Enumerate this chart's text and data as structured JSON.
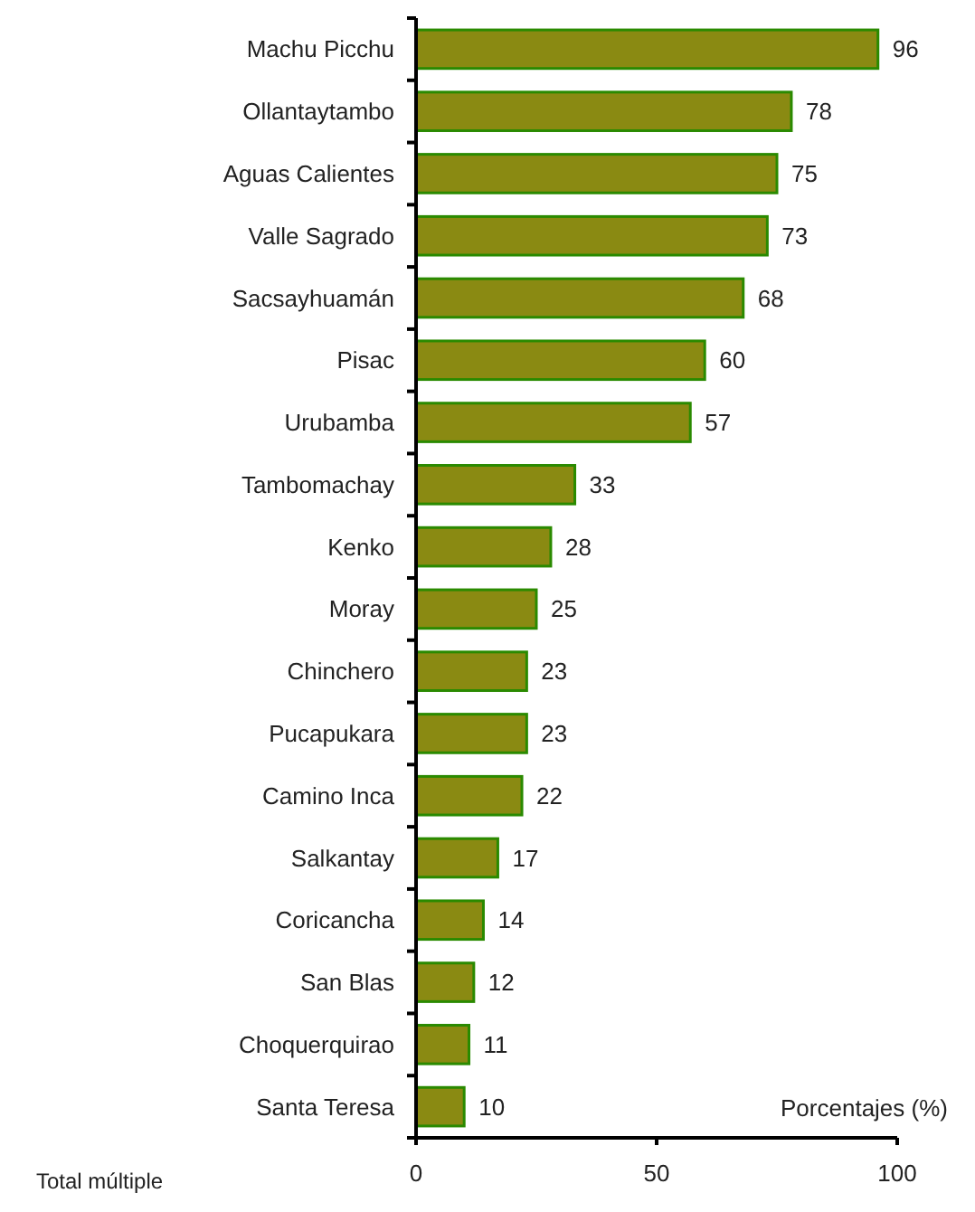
{
  "chart_data": {
    "type": "bar",
    "orientation": "horizontal",
    "xlabel": "Porcentajes (%)",
    "annotations": [
      "Total múltiple"
    ],
    "categories": [
      "Machu Picchu",
      "Ollantaytambo",
      "Aguas Calientes",
      "Valle Sagrado",
      "Sacsayhuamán",
      "Pisac",
      "Urubamba",
      "Tambomachay",
      "Kenko",
      "Moray",
      "Chinchero",
      "Pucapukara",
      "Camino Inca",
      "Salkantay",
      "Coricancha",
      "San Blas",
      "Choquerquirao",
      "Santa Teresa"
    ],
    "values": [
      96,
      78,
      75,
      73,
      68,
      60,
      57,
      33,
      28,
      25,
      23,
      23,
      22,
      17,
      14,
      12,
      11,
      10
    ],
    "color": "#8a8a12",
    "data_labels": true,
    "xlim": [
      0,
      100
    ],
    "xticks": [
      0,
      50,
      100
    ],
    "grid": false
  }
}
